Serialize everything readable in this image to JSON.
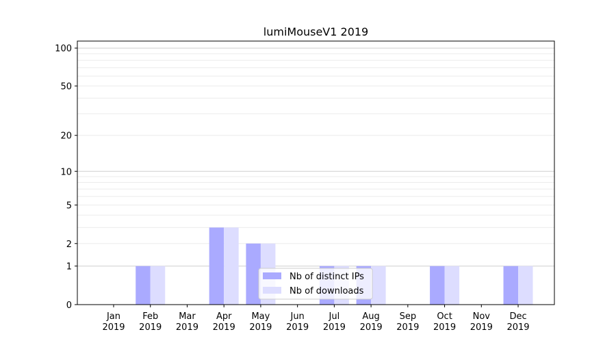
{
  "chart_data": {
    "type": "bar",
    "title": "lumiMouseV1 2019",
    "xlabel": "",
    "ylabel": "",
    "yscale": "log(1+y)",
    "ylim": [
      0,
      113
    ],
    "yticks": [
      0,
      1,
      2,
      5,
      10,
      20,
      50,
      100
    ],
    "grid": true,
    "legend_position": "lower-center",
    "categories": [
      "Jan\n2019",
      "Feb\n2019",
      "Mar\n2019",
      "Apr\n2019",
      "May\n2019",
      "Jun\n2019",
      "Jul\n2019",
      "Aug\n2019",
      "Sep\n2019",
      "Oct\n2019",
      "Nov\n2019",
      "Dec\n2019"
    ],
    "series": [
      {
        "name": "Nb of distinct IPs",
        "color": "#aaaaff",
        "values": [
          0,
          1,
          0,
          3,
          2,
          0,
          1,
          1,
          0,
          1,
          0,
          1
        ]
      },
      {
        "name": "Nb of downloads",
        "color": "#ddddff",
        "values": [
          0,
          1,
          0,
          3,
          2,
          0,
          1,
          1,
          0,
          1,
          0,
          1
        ]
      }
    ]
  }
}
